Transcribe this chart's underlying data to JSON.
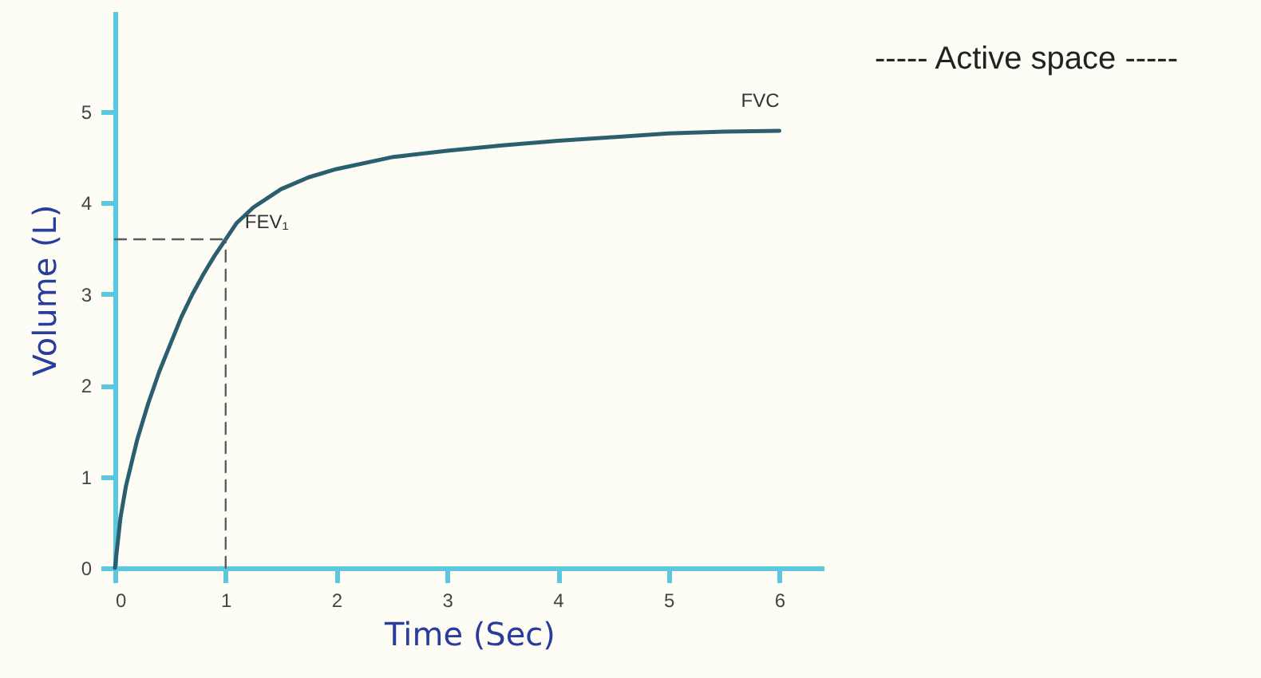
{
  "chart_data": {
    "type": "line",
    "xlabel": "Time (Sec)",
    "ylabel": "Volume (L)",
    "xlim": [
      0,
      6.4
    ],
    "ylim": [
      0,
      6.1
    ],
    "xticks": [
      0,
      1,
      2,
      3,
      4,
      5,
      6
    ],
    "yticks": [
      0,
      1,
      2,
      3,
      4,
      5
    ],
    "grid": false,
    "marker": "none",
    "series": [
      {
        "color": "#2b5f70",
        "line_style": "solid",
        "x": [
          0,
          0.05,
          0.1,
          0.2,
          0.3,
          0.4,
          0.5,
          0.6,
          0.7,
          0.8,
          0.9,
          1,
          1.1,
          1.25,
          1.5,
          1.75,
          2,
          2.5,
          3,
          3.5,
          4,
          4.5,
          5,
          5.5,
          6
        ],
        "values": [
          0,
          0.55,
          0.9,
          1.4,
          1.8,
          2.15,
          2.45,
          2.75,
          3.0,
          3.22,
          3.42,
          3.6,
          3.78,
          3.95,
          4.15,
          4.28,
          4.37,
          4.5,
          4.57,
          4.63,
          4.68,
          4.72,
          4.76,
          4.78,
          4.79
        ]
      },
      {
        "color": "#555e63",
        "line_style": "dashed",
        "x": [
          0,
          1
        ],
        "values": [
          3.6,
          3.6
        ]
      },
      {
        "color": "#555e63",
        "line_style": "dashed",
        "x": [
          1,
          1
        ],
        "values": [
          0,
          3.6
        ]
      }
    ],
    "annotations": [
      "----- Active space -----",
      {
        "text": "FVC",
        "x": 6,
        "y": 4.79
      },
      {
        "text": "FEV₁",
        "x": 1,
        "y": 3.6
      }
    ]
  }
}
